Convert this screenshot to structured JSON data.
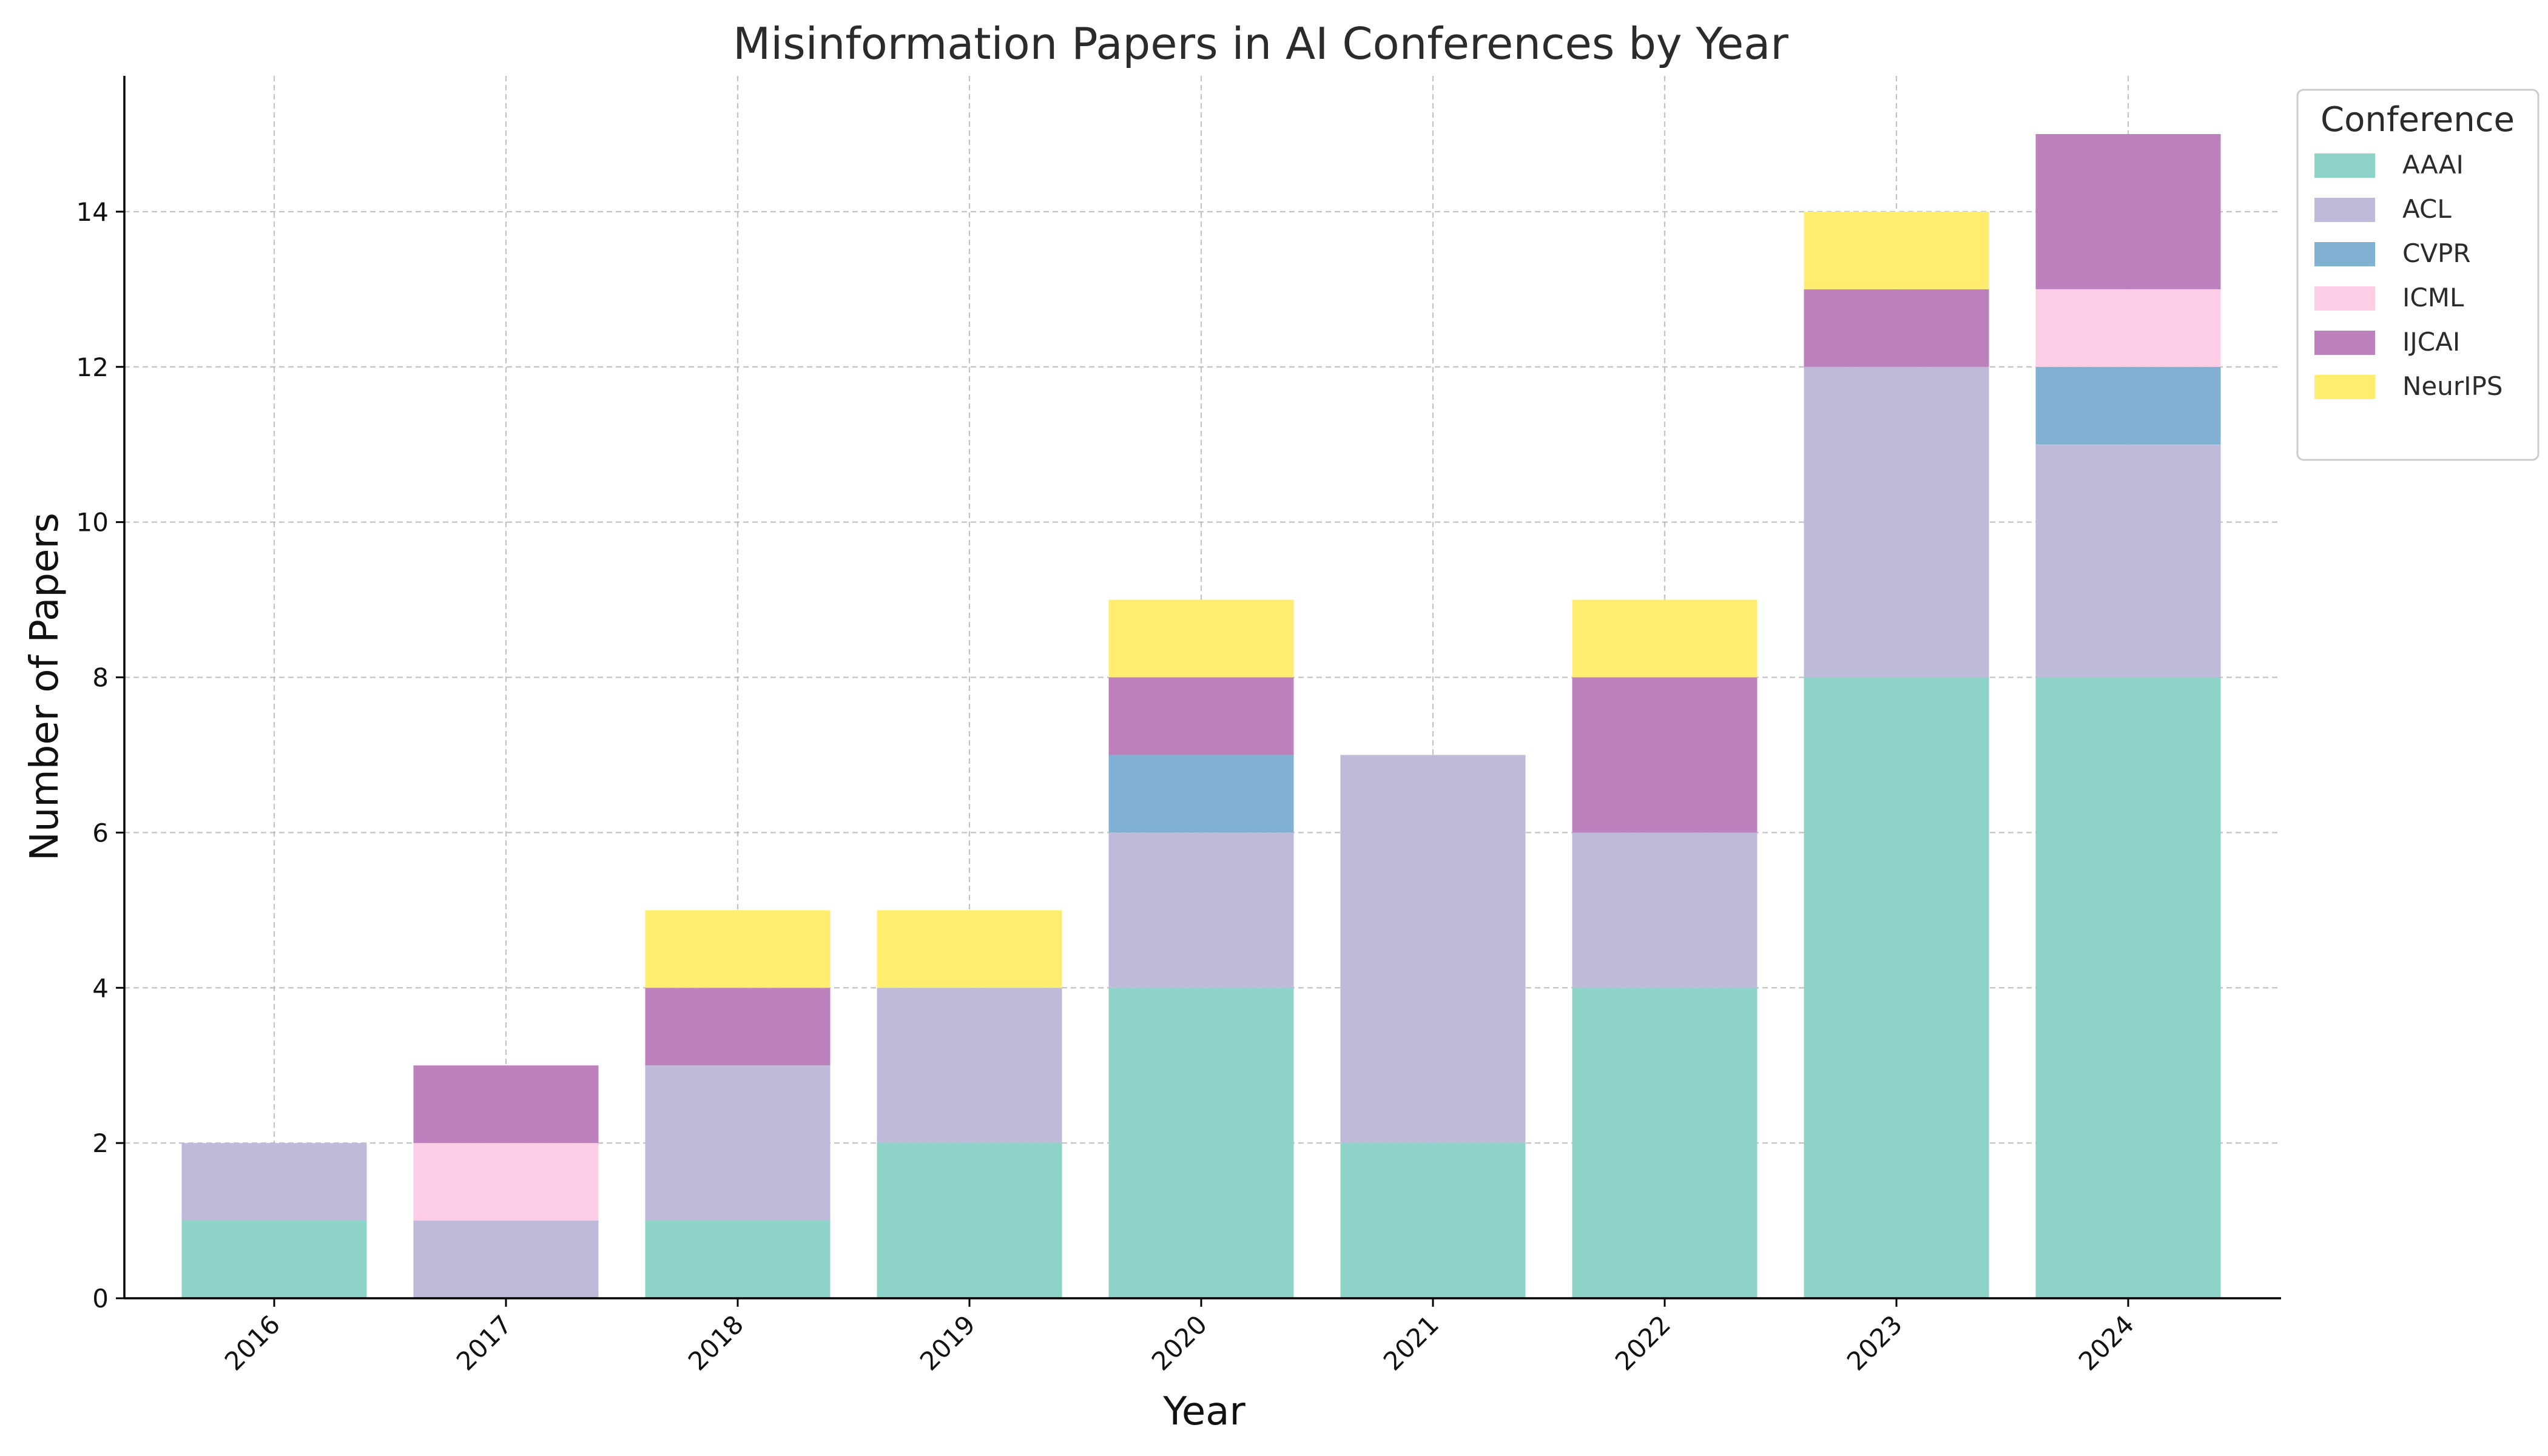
{
  "chart_data": {
    "type": "bar",
    "stacked": true,
    "title": "Misinformation Papers in AI Conferences by Year",
    "xlabel": "Year",
    "ylabel": "Number of Papers",
    "categories": [
      "2016",
      "2017",
      "2018",
      "2019",
      "2020",
      "2021",
      "2022",
      "2023",
      "2024"
    ],
    "ylim": [
      0,
      15.75
    ],
    "yticks": [
      "0",
      "2",
      "4",
      "6",
      "8",
      "10",
      "12",
      "14"
    ],
    "grid": true,
    "legend": {
      "title": "Conference",
      "placement": "upper right, outside plot"
    },
    "series": [
      {
        "name": "AAAI",
        "color": "#8dd3c7",
        "values": [
          1,
          0,
          1,
          2,
          4,
          2,
          4,
          8,
          8
        ]
      },
      {
        "name": "ACL",
        "color": "#bebada",
        "values": [
          1,
          1,
          2,
          2,
          2,
          5,
          2,
          4,
          3
        ]
      },
      {
        "name": "CVPR",
        "color": "#80b1d3",
        "values": [
          0,
          0,
          0,
          0,
          1,
          0,
          0,
          0,
          1
        ]
      },
      {
        "name": "ICML",
        "color": "#fccde5",
        "values": [
          0,
          1,
          0,
          0,
          0,
          0,
          0,
          0,
          1
        ]
      },
      {
        "name": "IJCAI",
        "color": "#bc80bd",
        "values": [
          0,
          1,
          1,
          0,
          1,
          0,
          2,
          1,
          2
        ]
      },
      {
        "name": "NeurIPS",
        "color": "#ffed6f",
        "values": [
          0,
          0,
          1,
          1,
          1,
          0,
          1,
          1,
          0
        ]
      }
    ]
  }
}
